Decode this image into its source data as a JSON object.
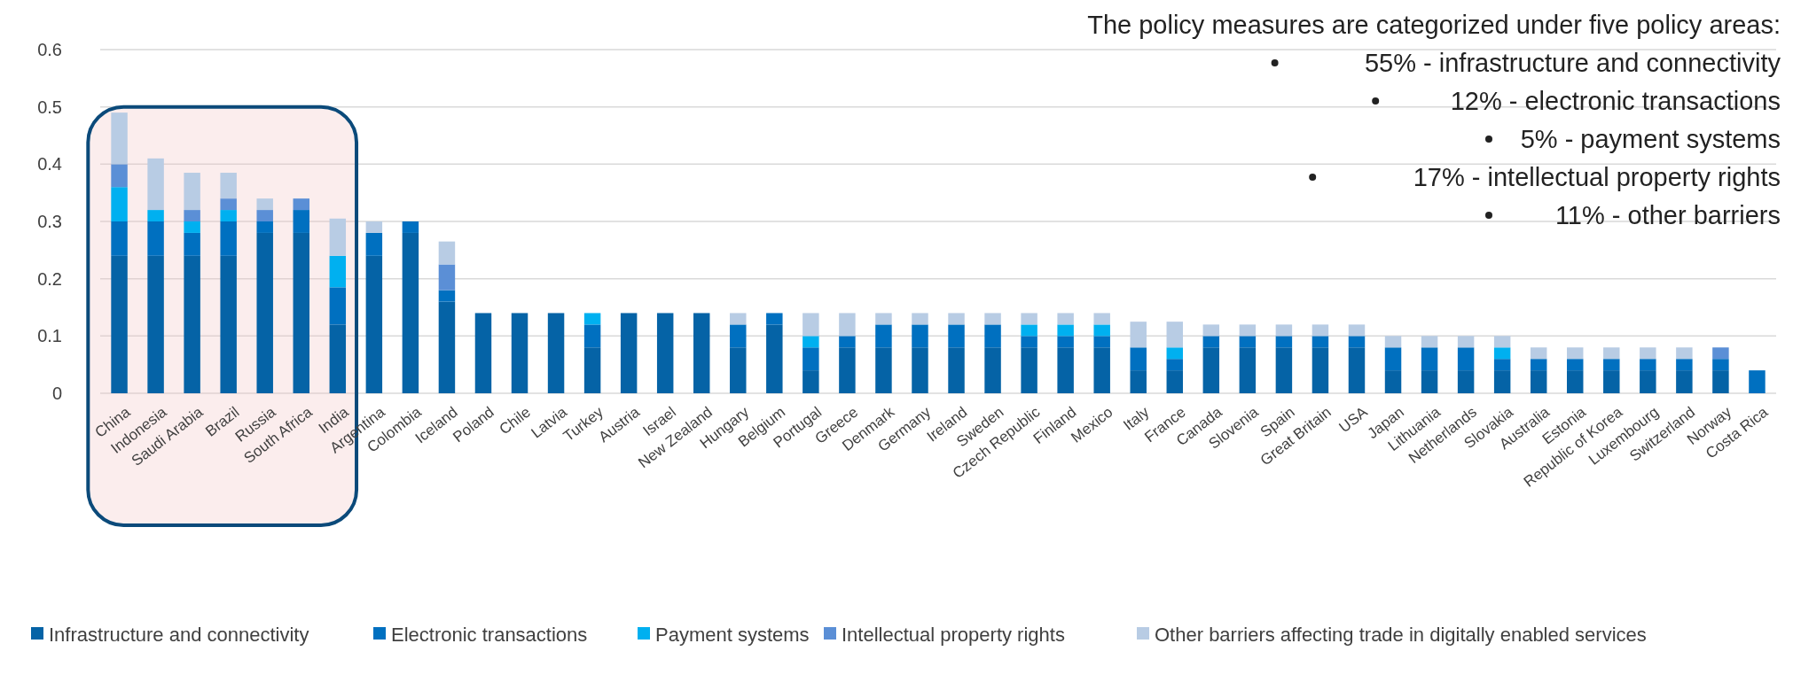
{
  "chart_data": {
    "type": "bar",
    "stacked": true,
    "categories": [
      "China",
      "Indonesia",
      "Saudi Arabia",
      "Brazil",
      "Russia",
      "South Africa",
      "India",
      "Argentina",
      "Colombia",
      "Iceland",
      "Poland",
      "Chile",
      "Latvia",
      "Turkey",
      "Austria",
      "Israel",
      "New Zealand",
      "Hungary",
      "Belgium",
      "Portugal",
      "Greece",
      "Denmark",
      "Germany",
      "Ireland",
      "Sweden",
      "Czech Republic",
      "Finland",
      "Mexico",
      "Italy",
      "France",
      "Canada",
      "Slovenia",
      "Spain",
      "Great Britain",
      "USA",
      "Japan",
      "Lithuania",
      "Netherlands",
      "Slovakia",
      "Australia",
      "Estonia",
      "Republic of Korea",
      "Luxembourg",
      "Switzerland",
      "Norway",
      "Costa Rica"
    ],
    "series": [
      {
        "name": "Infrastructure and connectivity",
        "color": "#0563a6",
        "values": [
          0.24,
          0.24,
          0.24,
          0.24,
          0.28,
          0.28,
          0.12,
          0.24,
          0.28,
          0.16,
          0.14,
          0.14,
          0.14,
          0.08,
          0.14,
          0.14,
          0.14,
          0.08,
          0.12,
          0.04,
          0.08,
          0.08,
          0.08,
          0.08,
          0.08,
          0.08,
          0.08,
          0.08,
          0.04,
          0.04,
          0.08,
          0.08,
          0.08,
          0.08,
          0.08,
          0.04,
          0.04,
          0.04,
          0.04,
          0.04,
          0.04,
          0.04,
          0.04,
          0.04,
          0.04,
          0
        ]
      },
      {
        "name": "Electronic transactions",
        "color": "#0070c0",
        "values": [
          0.06,
          0.06,
          0.04,
          0.06,
          0.02,
          0.04,
          0.065,
          0.04,
          0.02,
          0.02,
          0,
          0,
          0,
          0.04,
          0,
          0,
          0,
          0.04,
          0.02,
          0.04,
          0.02,
          0.04,
          0.04,
          0.04,
          0.04,
          0.02,
          0.02,
          0.02,
          0.04,
          0.02,
          0.02,
          0.02,
          0.02,
          0.02,
          0.02,
          0.04,
          0.04,
          0.04,
          0.02,
          0.02,
          0.02,
          0.02,
          0.02,
          0.02,
          0.02,
          0.04
        ]
      },
      {
        "name": "Payment systems",
        "color": "#00b0f0",
        "values": [
          0.06,
          0.02,
          0.02,
          0.02,
          0,
          0,
          0.055,
          0,
          0,
          0,
          0,
          0,
          0,
          0.02,
          0,
          0,
          0,
          0,
          0,
          0.02,
          0,
          0,
          0,
          0,
          0,
          0.02,
          0.02,
          0.02,
          0,
          0.02,
          0,
          0,
          0,
          0,
          0,
          0,
          0,
          0,
          0.02,
          0,
          0,
          0,
          0,
          0,
          0,
          0
        ]
      },
      {
        "name": "Intellectual property rights",
        "color": "#5b8fd6",
        "values": [
          0.04,
          0,
          0.02,
          0.02,
          0.02,
          0.02,
          0,
          0,
          0,
          0.045,
          0,
          0,
          0,
          0,
          0,
          0,
          0,
          0,
          0,
          0,
          0,
          0,
          0,
          0,
          0,
          0,
          0,
          0,
          0,
          0,
          0,
          0,
          0,
          0,
          0,
          0,
          0,
          0,
          0,
          0,
          0,
          0,
          0,
          0,
          0.02,
          0
        ]
      },
      {
        "name": "Other barriers affecting trade in digitally enabled services",
        "color": "#b8cce4",
        "values": [
          0.09,
          0.09,
          0.065,
          0.045,
          0.02,
          0,
          0.065,
          0.02,
          0,
          0.04,
          0,
          0,
          0,
          0,
          0,
          0,
          0,
          0.02,
          0,
          0.04,
          0.04,
          0.02,
          0.02,
          0.02,
          0.02,
          0.02,
          0.02,
          0.02,
          0.045,
          0.045,
          0.02,
          0.02,
          0.02,
          0.02,
          0.02,
          0.02,
          0.02,
          0.02,
          0.02,
          0.02,
          0.02,
          0.02,
          0.02,
          0.02,
          0,
          0
        ]
      }
    ],
    "ylim": [
      0,
      0.6
    ],
    "yticks": [
      0,
      0.1,
      0.2,
      0.3,
      0.4,
      0.5,
      0.6
    ],
    "grid": "y",
    "legend": "bottom",
    "annotations": [
      "The policy measures are categorized under five policy areas:",
      "55% - infrastructure and connectivity",
      "12% - electronic transactions",
      "5% - payment systems",
      "17% - intellectual property rights",
      "11% - other barriers"
    ]
  }
}
